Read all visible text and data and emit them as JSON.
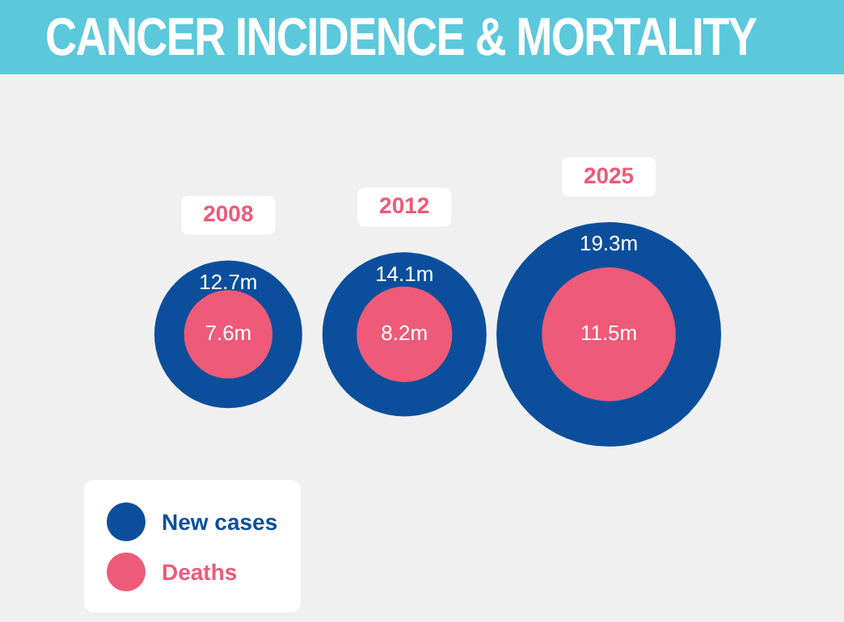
{
  "chart_data": {
    "type": "other",
    "title": "CANCER INCIDENCE & MORTALITY",
    "categories": [
      "2008",
      "2012",
      "2025"
    ],
    "legend": "bottom left",
    "series": [
      {
        "name": "New cases",
        "color": "#0b4f9c",
        "values": [
          12.7,
          14.1,
          19.3
        ],
        "value_labels": [
          "12.7m",
          "14.1m",
          "19.3m"
        ]
      },
      {
        "name": "Deaths",
        "color": "#ee5a78",
        "values": [
          7.6,
          8.2,
          11.5
        ],
        "value_labels": [
          "7.6m",
          "8.2m",
          "11.5m"
        ]
      }
    ]
  }
}
